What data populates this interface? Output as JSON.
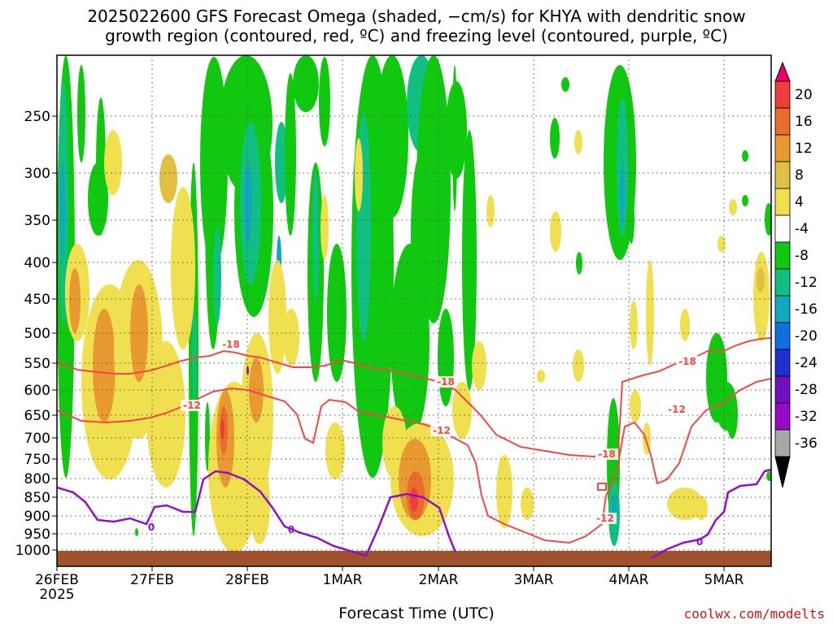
{
  "title_line1": "2025022600 GFS Forecast Omega (shaded, −cm/s) for KHYA with dendritic snow",
  "title_line2": "growth region (contoured, red, ºC) and freezing level (contoured, purple, ºC)",
  "xlabel": "Forecast Time (UTC)",
  "credit": "coolwx.com/modelts",
  "colors": {
    "dgz": "#f04848",
    "freezing": "#9010c8",
    "ground": "#a0522d",
    "grid": "#555555"
  },
  "chart_data": {
    "type": "heatmap",
    "title": "2025022600 GFS Forecast Omega (shaded, −cm/s) for KHYA with dendritic snow growth region (contoured, red, ºC) and freezing level (contoured, purple, ºC)",
    "xlabel": "Forecast Time (UTC)",
    "ylabel": "",
    "x_ticks": [
      "26FEB",
      "27FEB",
      "28FEB",
      "1MAR",
      "2MAR",
      "3MAR",
      "4MAR",
      "5MAR"
    ],
    "x_year_label": "2025",
    "y_ticks": [
      250,
      300,
      350,
      400,
      450,
      500,
      550,
      600,
      650,
      700,
      750,
      800,
      850,
      900,
      950,
      1000
    ],
    "ylim": [
      1000,
      200
    ],
    "y_scale": "log",
    "grid": true,
    "colorbar": {
      "labels": [
        20,
        16,
        12,
        8,
        4,
        -4,
        -8,
        -12,
        -16,
        -20,
        -24,
        -28,
        -32,
        -36
      ],
      "colors": [
        "#e8006a",
        "#f03c3c",
        "#e86c2c",
        "#e89a30",
        "#e0c040",
        "#f0e050",
        "#ffffff",
        "#10c810",
        "#10c080",
        "#10a8c0",
        "#1070e0",
        "#2030d0",
        "#7010c0",
        "#9808c8",
        "#a8a8a8",
        "#000000"
      ]
    },
    "contour_labels": {
      "dgz": [
        "-18",
        "-18",
        "-12",
        "-12",
        "-18",
        "-12",
        "-18",
        "-12"
      ],
      "freezing": [
        "0",
        "0",
        "0"
      ]
    }
  }
}
